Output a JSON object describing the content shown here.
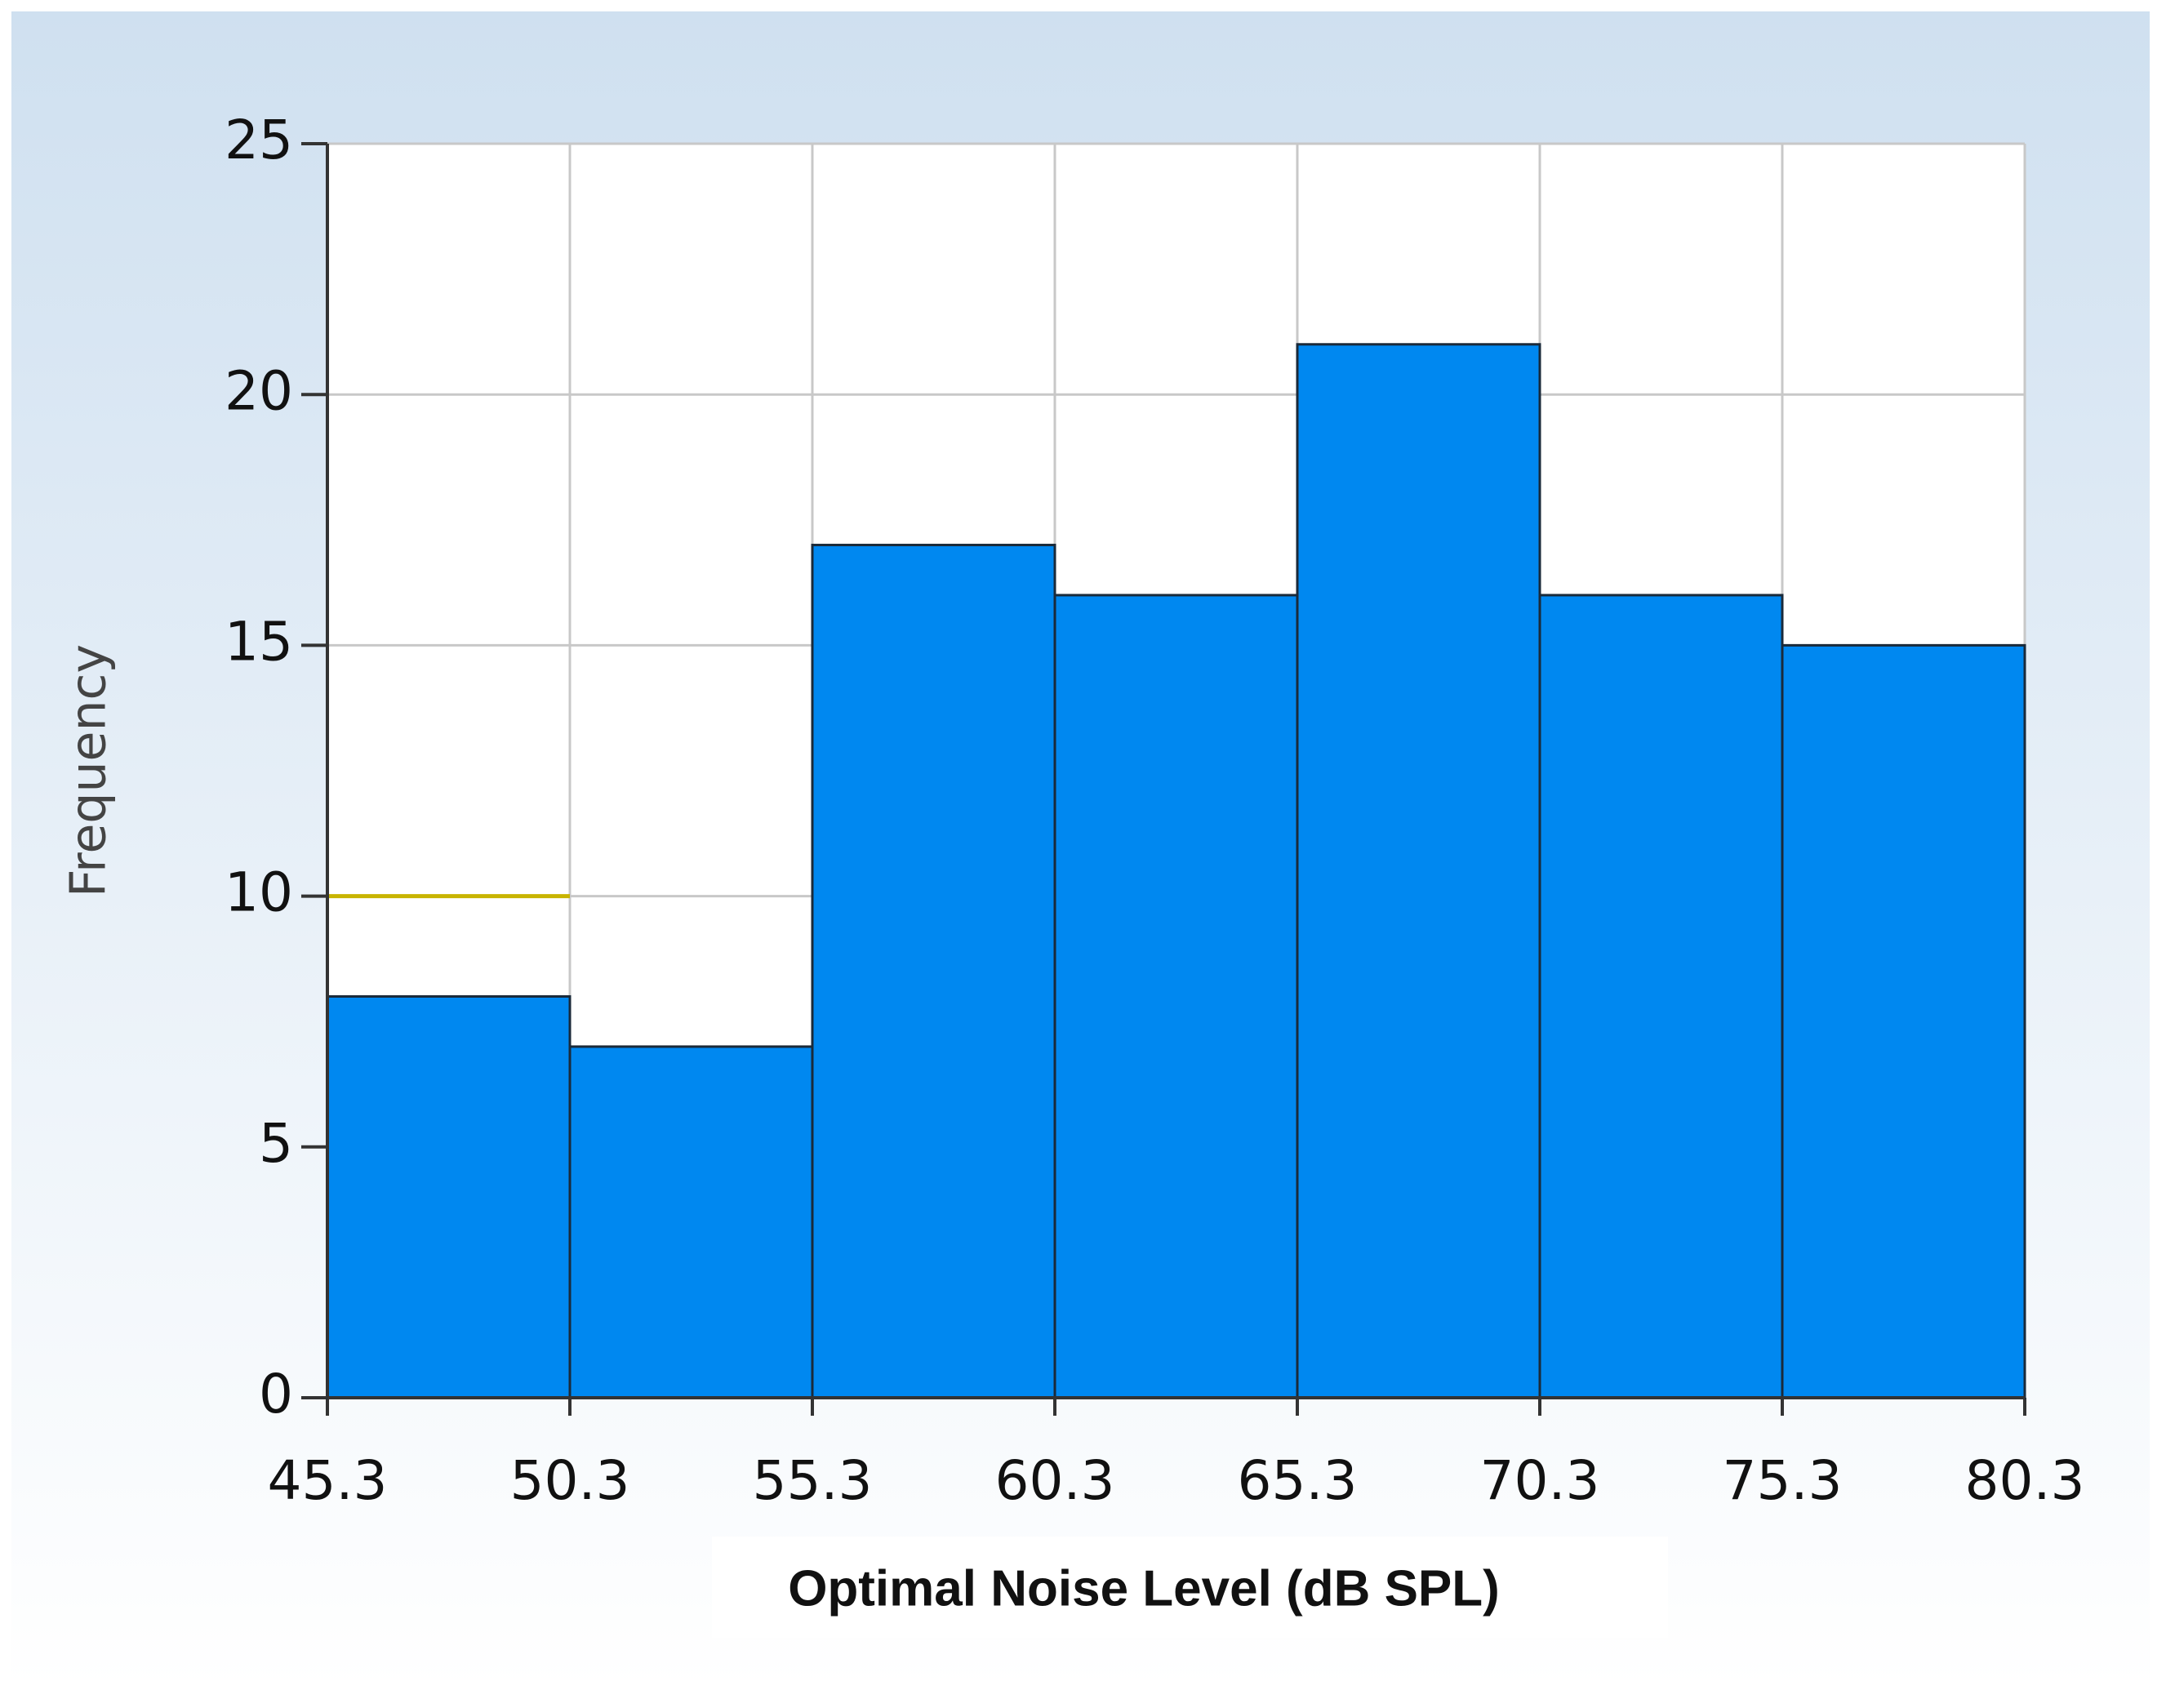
{
  "chart_data": {
    "type": "histogram",
    "x_label": "Optimal Noise Level (dB SPL)",
    "y_label": "Frequency",
    "bins": [
      45.3,
      50.3,
      55.3,
      60.3,
      65.3,
      70.3,
      75.3,
      80.3
    ],
    "values": [
      8,
      7,
      17,
      16,
      21,
      16,
      15
    ],
    "color": "#0088f0",
    "xlim": [
      45.3,
      80.3
    ],
    "xticks": [
      45.3,
      50.3,
      55.3,
      60.3,
      65.3,
      70.3,
      75.3,
      80.3
    ],
    "ylim": [
      0,
      25
    ],
    "yticks": [
      0,
      5,
      10,
      15,
      20,
      25
    ],
    "grid": true,
    "reference_line": {
      "y": 10,
      "x": [
        45.3,
        50.3
      ],
      "color": "#c8b400"
    }
  }
}
